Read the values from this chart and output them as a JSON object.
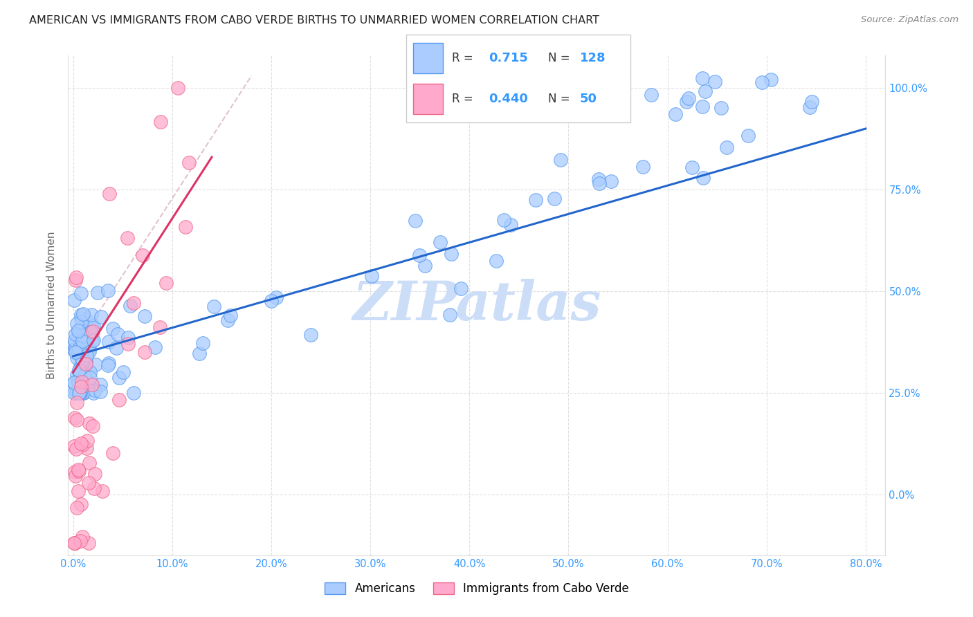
{
  "title": "AMERICAN VS IMMIGRANTS FROM CABO VERDE BIRTHS TO UNMARRIED WOMEN CORRELATION CHART",
  "source": "Source: ZipAtlas.com",
  "ylabel_label": "Births to Unmarried Women",
  "legend_label1": "Americans",
  "legend_label2": "Immigrants from Cabo Verde",
  "R1": "0.715",
  "N1": "128",
  "R2": "0.440",
  "N2": "50",
  "color_american_fill": "#aaccff",
  "color_american_edge": "#5599ee",
  "color_caboverde_fill": "#ffaacc",
  "color_caboverde_edge": "#ee6688",
  "color_line_american": "#2266cc",
  "color_line_caboverde": "#dd3366",
  "color_trendline_dashed": "#ddbbcc",
  "watermark": "ZIPatlas",
  "watermark_color": "#ccddf8",
  "xlim_min": -0.5,
  "xlim_max": 82,
  "ylim_min": -15,
  "ylim_max": 108,
  "xticks": [
    0,
    10,
    20,
    30,
    40,
    50,
    60,
    70,
    80
  ],
  "yticks": [
    0,
    25,
    50,
    75,
    100
  ],
  "xticklabels": [
    "0.0%",
    "10.0%",
    "20.0%",
    "30.0%",
    "40.0%",
    "50.0%",
    "60.0%",
    "70.0%",
    "80.0%"
  ],
  "yticklabels": [
    "0.0%",
    "25.0%",
    "50.0%",
    "75.0%",
    "100.0%"
  ],
  "tick_color": "#3399ff",
  "am_trend_x0": 0,
  "am_trend_x1": 80,
  "am_trend_y0": 34,
  "am_trend_y1": 90,
  "cv_trend_x0": 0,
  "cv_trend_x1": 14,
  "cv_trend_y0": 30,
  "cv_trend_y1": 83,
  "dash_x0": 0,
  "dash_y0": 35,
  "dash_x1": 18,
  "dash_y1": 103
}
